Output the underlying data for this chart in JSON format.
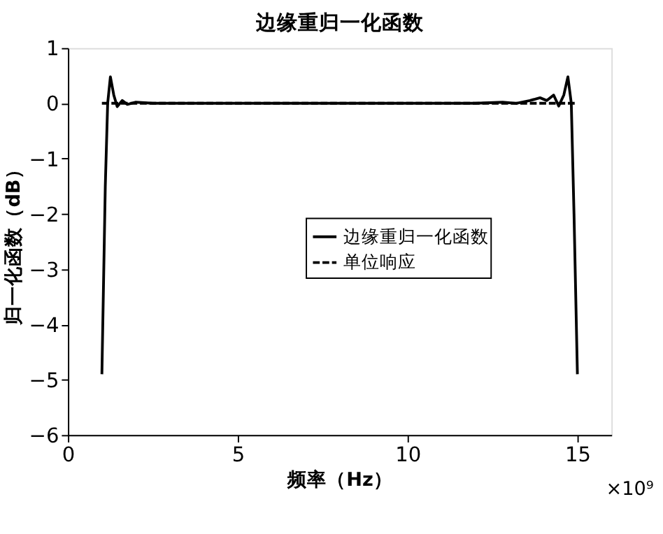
{
  "chart_data": {
    "type": "line",
    "title": "边缘重归一化函数",
    "xlabel": "频率（Hz）",
    "ylabel": "归一化函数（dB）",
    "annotations": [
      "×10⁹"
    ],
    "xlim": [
      0,
      16
    ],
    "xticks": [
      0,
      5,
      10,
      15
    ],
    "ylim": [
      -6,
      1
    ],
    "yticks": [
      -6,
      -5,
      -4,
      -3,
      -2,
      -1,
      0,
      1
    ],
    "grid": false,
    "legend": "right",
    "series": [
      {
        "name": "边缘重归一化函数",
        "color": "#000000",
        "line_style": "solid",
        "x": [
          1.0,
          1.1,
          1.17,
          1.25,
          1.35,
          1.45,
          1.6,
          1.75,
          2.0,
          2.5,
          4.0,
          8.0,
          12.0,
          12.8,
          13.2,
          13.6,
          13.9,
          14.1,
          14.3,
          14.45,
          14.6,
          14.72,
          14.82,
          14.9,
          15.0
        ],
        "values": [
          -4.9,
          -1.5,
          0.0,
          0.48,
          0.15,
          -0.06,
          0.05,
          -0.02,
          0.02,
          0.0,
          0.0,
          0.0,
          0.0,
          0.02,
          0.0,
          0.05,
          0.1,
          0.05,
          0.15,
          -0.05,
          0.15,
          0.48,
          0.0,
          -2.0,
          -4.9
        ]
      },
      {
        "name": "单位响应",
        "color": "#000000",
        "line_style": "dashed",
        "x": [
          1.0,
          15.0
        ],
        "values": [
          0.0,
          0.0
        ]
      }
    ]
  }
}
